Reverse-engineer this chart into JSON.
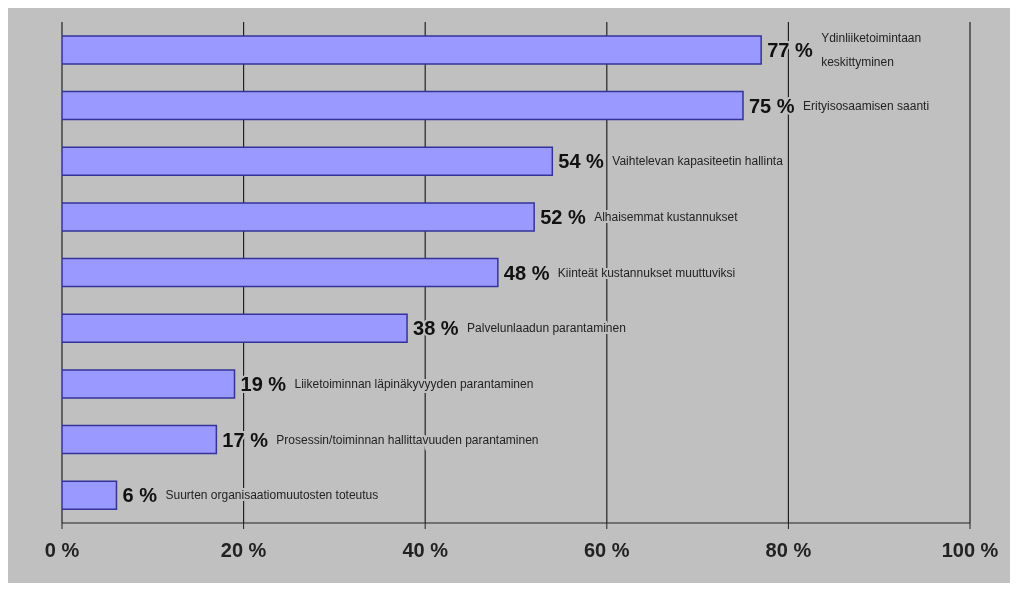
{
  "chart_data": {
    "type": "bar",
    "orientation": "horizontal",
    "categories": [
      "Ydinliiketoimintaan keskittyminen",
      "Erityisosaamisen saanti",
      "Vaihtelevan kapasiteetin hallinta",
      "Alhaisemmat kustannukset",
      "Kiinteät kustannukset muuttuviksi",
      "Palvelunlaadun parantaminen",
      "Liiketoiminnan läpinäkyvyyden parantaminen",
      "Prosessin/toiminnan hallittavuuden parantaminen",
      "Suurten organisaatiomuutosten toteutus"
    ],
    "values": [
      77,
      75,
      54,
      52,
      48,
      38,
      19,
      17,
      6
    ],
    "value_labels": [
      "77 %",
      "75 %",
      "54 %",
      "52 %",
      "48 %",
      "38 %",
      "19 %",
      "17 %",
      "6 %"
    ],
    "color": "#9999ff",
    "xlim": [
      0,
      100
    ],
    "xticks": [
      {
        "value": 0,
        "label": "0 %"
      },
      {
        "value": 20,
        "label": "20 %"
      },
      {
        "value": 40,
        "label": "40 %"
      },
      {
        "value": 60,
        "label": "60 %"
      },
      {
        "value": 80,
        "label": "80 %"
      },
      {
        "value": 100,
        "label": "100 %"
      }
    ],
    "grid": "x",
    "tick_labels": "x"
  }
}
